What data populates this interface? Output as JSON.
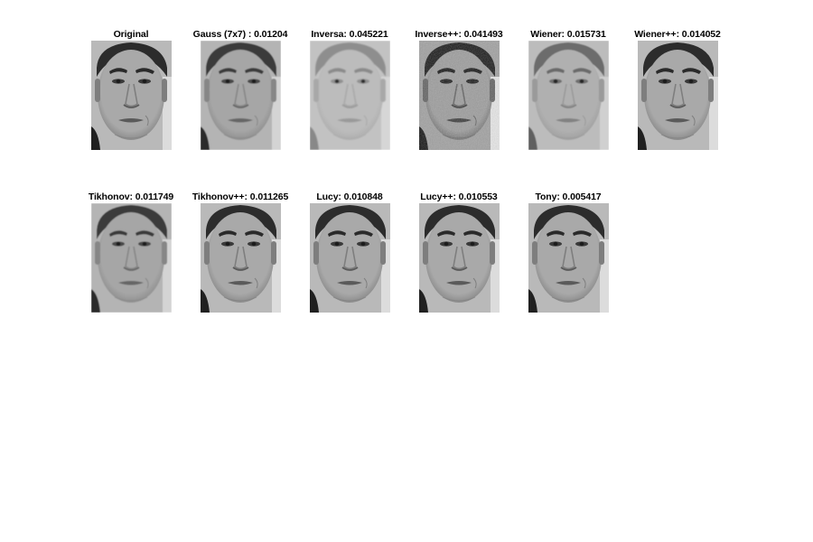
{
  "figure": {
    "panels": [
      {
        "title": "Original",
        "tone": "normal"
      },
      {
        "title": "Gauss (7x7) : 0.01204",
        "tone": "blur"
      },
      {
        "title": "Inversa: 0.045221",
        "tone": "washed"
      },
      {
        "title": "Inverse++: 0.041493",
        "tone": "noisy"
      },
      {
        "title": "Wiener: 0.015731",
        "tone": "faded"
      },
      {
        "title": "Wiener++: 0.014052",
        "tone": "normal"
      },
      {
        "title": "Tikhonov: 0.011749",
        "tone": "blur"
      },
      {
        "title": "Tikhonov++: 0.011265",
        "tone": "normal"
      },
      {
        "title": "Lucy: 0.010848",
        "tone": "normal"
      },
      {
        "title": "Lucy++: 0.010553",
        "tone": "normal"
      },
      {
        "title": "Tony: 0.005417",
        "tone": "normal"
      }
    ]
  }
}
